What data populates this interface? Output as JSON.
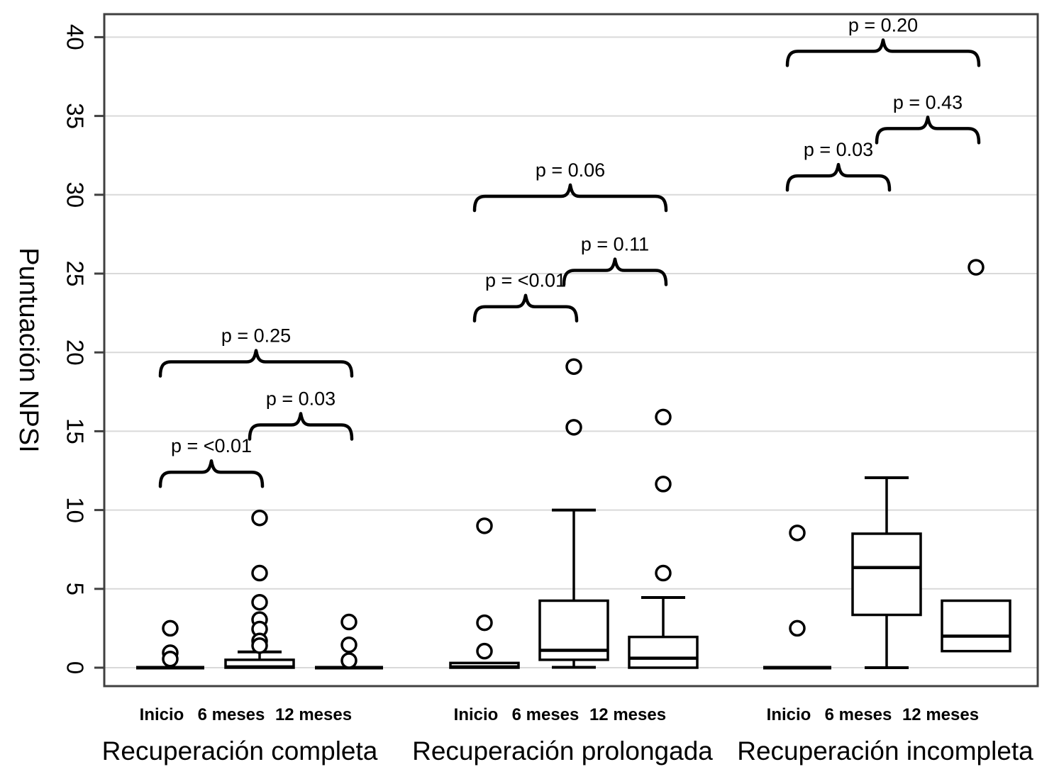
{
  "figure": {
    "background": "#ffffff",
    "colors": {
      "data_stroke": "#000000",
      "gridline": "#d9d9d9",
      "plot_border": "#404040",
      "text": "#000000"
    }
  },
  "chart_data": {
    "type": "boxplot",
    "title": "",
    "ylabel": "Puntuación NPSI",
    "xlabel": "",
    "ylim": [
      0,
      40
    ],
    "yticks": [
      0,
      5,
      10,
      15,
      20,
      25,
      30,
      35,
      40
    ],
    "grid": "horizontal-light-gray",
    "legend": "none",
    "series_labels": [
      "Inicio",
      "6 meses",
      "12 meses"
    ],
    "groups": [
      {
        "label": "Recuperación completa",
        "boxes": [
          {
            "label": "Inicio",
            "median": 0,
            "q1": 0,
            "q3": 0,
            "whisker_low": null,
            "whisker_high": null,
            "outliers": [
              2.5,
              0.95,
              0.55
            ]
          },
          {
            "label": "6 meses",
            "median": 0.05,
            "q1": 0,
            "q3": 0.5,
            "whisker_low": null,
            "whisker_high": 1.0,
            "outliers": [
              9.5,
              6.0,
              4.15,
              3.05,
              2.45,
              1.7,
              1.4
            ]
          },
          {
            "label": "12 meses",
            "median": 0,
            "q1": 0,
            "q3": 0,
            "whisker_low": null,
            "whisker_high": null,
            "outliers": [
              2.9,
              1.45,
              0.45
            ]
          }
        ],
        "comparisons": [
          {
            "from": "Inicio",
            "to": "6 meses",
            "p_label": "p = <0.01",
            "height": 12.4
          },
          {
            "from": "6 meses",
            "to": "12 meses",
            "p_label": "p = 0.03",
            "height": 15.4
          },
          {
            "from": "Inicio",
            "to": "12 meses",
            "p_label": "p = 0.25",
            "height": 19.4
          }
        ]
      },
      {
        "label": "Recuperación prolongada",
        "boxes": [
          {
            "label": "Inicio",
            "median": 0.05,
            "q1": 0,
            "q3": 0.3,
            "whisker_low": null,
            "whisker_high": null,
            "outliers": [
              9.0,
              2.85,
              1.05
            ]
          },
          {
            "label": "6 meses",
            "median": 1.1,
            "q1": 0.5,
            "q3": 4.25,
            "whisker_low": 0.02,
            "whisker_high": 10.0,
            "outliers": [
              19.1,
              15.25
            ]
          },
          {
            "label": "12 meses",
            "median": 0.6,
            "q1": 0,
            "q3": 1.95,
            "whisker_low": null,
            "whisker_high": 4.45,
            "outliers": [
              15.9,
              11.65,
              6.0
            ]
          }
        ],
        "comparisons": [
          {
            "from": "Inicio",
            "to": "6 meses",
            "p_label": "p = <0.01",
            "height": 22.9
          },
          {
            "from": "6 meses",
            "to": "12 meses",
            "p_label": "p = 0.11",
            "height": 25.2
          },
          {
            "from": "Inicio",
            "to": "12 meses",
            "p_label": "p = 0.06",
            "height": 29.9
          }
        ]
      },
      {
        "label": "Recuperación incompleta",
        "boxes": [
          {
            "label": "Inicio",
            "median": 0,
            "q1": 0,
            "q3": 0,
            "whisker_low": null,
            "whisker_high": null,
            "outliers": [
              8.55,
              2.5
            ]
          },
          {
            "label": "6 meses",
            "median": 6.35,
            "q1": 3.35,
            "q3": 8.5,
            "whisker_low": 0,
            "whisker_high": 12.05,
            "outliers": []
          },
          {
            "label": "12 meses",
            "median": 2.0,
            "q1": 1.05,
            "q3": 4.25,
            "whisker_low": null,
            "whisker_high": null,
            "outliers": [
              25.4
            ]
          }
        ],
        "comparisons": [
          {
            "from": "Inicio",
            "to": "6 meses",
            "p_label": "p = 0.03",
            "height": 31.2
          },
          {
            "from": "6 meses",
            "to": "12 meses",
            "p_label": "p = 0.43",
            "height": 34.2
          },
          {
            "from": "Inicio",
            "to": "12 meses",
            "p_label": "p = 0.20",
            "height": 39.1
          }
        ]
      }
    ]
  }
}
